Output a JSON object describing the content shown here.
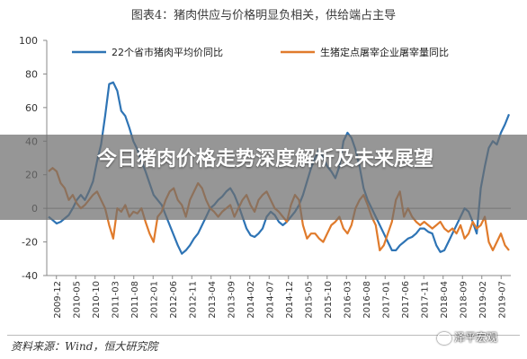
{
  "page": {
    "title": "图表4：猪肉供应与价格明显负相关，供给端占主导",
    "overlay_title": "今日猪肉价格走势深度解析及未来展望",
    "source": "资料来源：Wind，恒大研究院",
    "watermark": "泽平宏观",
    "watermark_icon": "wechat-icon"
  },
  "chart_data": {
    "type": "line",
    "title": "图表4：猪肉供应与价格明显负相关，供给端占主导",
    "xlabel": "",
    "ylabel": "",
    "ylim": [
      -40,
      100
    ],
    "yticks": [
      -40,
      -20,
      0,
      20,
      40,
      60,
      80,
      100
    ],
    "grid": false,
    "legend_position": "top",
    "x_tick_labels": [
      "2009-12",
      "2010-05",
      "2010-10",
      "2011-03",
      "2011-08",
      "2012-01",
      "2012-06",
      "2012-11",
      "2013-04",
      "2013-09",
      "2014-02",
      "2014-07",
      "2014-12",
      "2015-05",
      "2015-10",
      "2016-03",
      "2016-08",
      "2017-01",
      "2017-06",
      "2017-11",
      "2018-04",
      "2018-09",
      "2019-02",
      "2019-07"
    ],
    "series": [
      {
        "name": "22个省市猪肉平均价同比",
        "color": "#2e74b5",
        "values": [
          -5,
          -7,
          -9,
          -8,
          -6,
          -4,
          0,
          5,
          8,
          5,
          10,
          16,
          28,
          38,
          55,
          74,
          75,
          70,
          58,
          55,
          48,
          40,
          35,
          28,
          22,
          15,
          8,
          5,
          2,
          -4,
          -10,
          -16,
          -22,
          -27,
          -25,
          -22,
          -18,
          -15,
          -10,
          -5,
          0,
          2,
          5,
          7,
          10,
          12,
          8,
          2,
          -5,
          -12,
          -16,
          -17,
          -15,
          -12,
          -5,
          -2,
          -4,
          -8,
          -10,
          -8,
          -5,
          -2,
          2,
          8,
          16,
          24,
          30,
          35,
          30,
          25,
          22,
          18,
          25,
          40,
          45,
          42,
          35,
          25,
          12,
          5,
          0,
          -5,
          -10,
          -15,
          -20,
          -25,
          -25,
          -22,
          -20,
          -18,
          -17,
          -15,
          -12,
          -12,
          -14,
          -15,
          -22,
          -26,
          -25,
          -20,
          -15,
          -10,
          -5,
          0,
          -2,
          -8,
          -15,
          12,
          25,
          36,
          40,
          38,
          45,
          50,
          56
        ]
      },
      {
        "name": "生猪定点屠宰企业屠宰量同比",
        "color": "#e07b2c",
        "values": [
          22,
          24,
          22,
          15,
          12,
          5,
          8,
          3,
          0,
          2,
          5,
          8,
          10,
          5,
          0,
          -10,
          -18,
          0,
          -2,
          2,
          -5,
          -2,
          -3,
          0,
          -8,
          -15,
          -20,
          -5,
          -2,
          5,
          10,
          12,
          5,
          2,
          -5,
          5,
          10,
          15,
          12,
          5,
          0,
          -2,
          -5,
          -2,
          0,
          2,
          -5,
          0,
          5,
          8,
          2,
          -2,
          5,
          8,
          10,
          5,
          0,
          -2,
          -5,
          -8,
          2,
          8,
          5,
          -10,
          -18,
          -15,
          -15,
          -18,
          -20,
          -15,
          -10,
          -8,
          -5,
          -12,
          -15,
          -10,
          0,
          5,
          8,
          2,
          -5,
          -10,
          -25,
          -22,
          -15,
          -8,
          5,
          10,
          -5,
          0,
          -5,
          -8,
          -10,
          -8,
          -10,
          -12,
          -10,
          -8,
          -12,
          -14,
          -12,
          -15,
          -10,
          -18,
          -15,
          -8,
          -12,
          -10,
          -5,
          -20,
          -25,
          -20,
          -15,
          -22,
          -25
        ]
      }
    ]
  }
}
